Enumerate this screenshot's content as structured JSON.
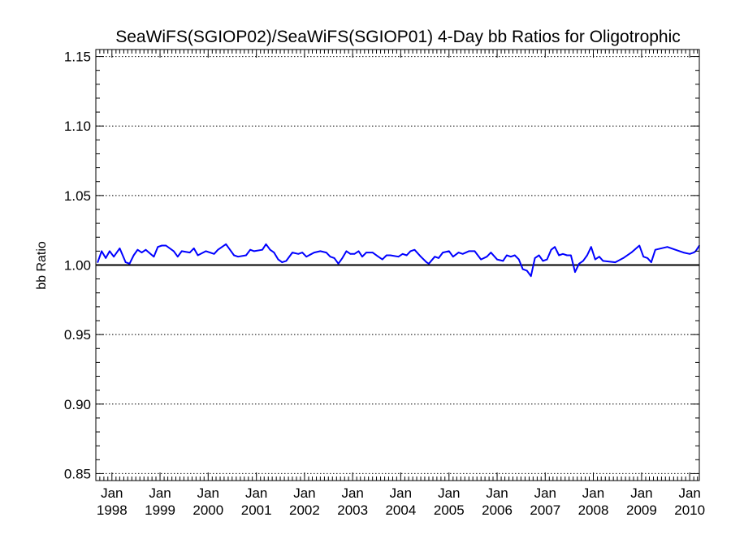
{
  "chart_data": {
    "type": "line",
    "title": "SeaWiFS(SGIOP02)/SeaWiFS(SGIOP01) 4-Day bb Ratios for Oligotrophic",
    "xlabel": "",
    "ylabel": "bb Ratio",
    "xlim": [
      "1997-09-01",
      "2010-03-15"
    ],
    "ylim": [
      0.845,
      1.155
    ],
    "yticks": [
      0.85,
      0.9,
      0.95,
      1.0,
      1.05,
      1.1,
      1.15
    ],
    "ytick_labels": [
      "0.85",
      "0.90",
      "0.95",
      "1.00",
      "1.05",
      "1.10",
      "1.15"
    ],
    "xticks": [
      {
        "date": "1998-01-01",
        "month": "Jan",
        "year": "1998"
      },
      {
        "date": "1999-01-01",
        "month": "Jan",
        "year": "1999"
      },
      {
        "date": "2000-01-01",
        "month": "Jan",
        "year": "2000"
      },
      {
        "date": "2001-01-01",
        "month": "Jan",
        "year": "2001"
      },
      {
        "date": "2002-01-01",
        "month": "Jan",
        "year": "2002"
      },
      {
        "date": "2003-01-01",
        "month": "Jan",
        "year": "2003"
      },
      {
        "date": "2004-01-01",
        "month": "Jan",
        "year": "2004"
      },
      {
        "date": "2005-01-01",
        "month": "Jan",
        "year": "2005"
      },
      {
        "date": "2006-01-01",
        "month": "Jan",
        "year": "2006"
      },
      {
        "date": "2007-01-01",
        "month": "Jan",
        "year": "2007"
      },
      {
        "date": "2008-01-01",
        "month": "Jan",
        "year": "2008"
      },
      {
        "date": "2009-01-01",
        "month": "Jan",
        "year": "2009"
      },
      {
        "date": "2010-01-01",
        "month": "Jan",
        "year": "2010"
      }
    ],
    "grid": "dotted horizontal at major y ticks",
    "reference_line": {
      "y": 1.0,
      "color": "#000000"
    },
    "series": [
      {
        "color": "#0000ff",
        "points": [
          [
            "1997-09-15",
            1.002
          ],
          [
            "1997-10-15",
            1.01
          ],
          [
            "1997-11-15",
            1.005
          ],
          [
            "1997-12-15",
            1.01
          ],
          [
            "1998-01-15",
            1.006
          ],
          [
            "1998-03-01",
            1.012
          ],
          [
            "1998-04-15",
            1.002
          ],
          [
            "1998-05-15",
            1.001
          ],
          [
            "1998-06-15",
            1.007
          ],
          [
            "1998-07-15",
            1.011
          ],
          [
            "1998-08-15",
            1.009
          ],
          [
            "1998-09-15",
            1.011
          ],
          [
            "1998-11-15",
            1.006
          ],
          [
            "1998-12-15",
            1.013
          ],
          [
            "1999-01-15",
            1.014
          ],
          [
            "1999-02-15",
            1.014
          ],
          [
            "1999-04-15",
            1.01
          ],
          [
            "1999-05-15",
            1.006
          ],
          [
            "1999-06-15",
            1.01
          ],
          [
            "1999-08-15",
            1.009
          ],
          [
            "1999-09-15",
            1.012
          ],
          [
            "1999-10-15",
            1.007
          ],
          [
            "1999-12-15",
            1.01
          ],
          [
            "2000-02-15",
            1.008
          ],
          [
            "2000-03-15",
            1.011
          ],
          [
            "2000-05-15",
            1.015
          ],
          [
            "2000-06-15",
            1.011
          ],
          [
            "2000-07-15",
            1.007
          ],
          [
            "2000-08-15",
            1.006
          ],
          [
            "2000-10-15",
            1.007
          ],
          [
            "2000-11-15",
            1.011
          ],
          [
            "2000-12-15",
            1.01
          ],
          [
            "2001-02-15",
            1.011
          ],
          [
            "2001-03-15",
            1.015
          ],
          [
            "2001-04-15",
            1.011
          ],
          [
            "2001-05-15",
            1.009
          ],
          [
            "2001-06-15",
            1.004
          ],
          [
            "2001-07-15",
            1.002
          ],
          [
            "2001-08-15",
            1.003
          ],
          [
            "2001-10-01",
            1.009
          ],
          [
            "2001-11-15",
            1.008
          ],
          [
            "2001-12-15",
            1.009
          ],
          [
            "2002-01-15",
            1.006
          ],
          [
            "2002-03-15",
            1.009
          ],
          [
            "2002-05-01",
            1.01
          ],
          [
            "2002-06-15",
            1.009
          ],
          [
            "2002-07-15",
            1.006
          ],
          [
            "2002-08-15",
            1.005
          ],
          [
            "2002-09-15",
            1.001
          ],
          [
            "2002-10-15",
            1.005
          ],
          [
            "2002-11-15",
            1.01
          ],
          [
            "2002-12-15",
            1.008
          ],
          [
            "2003-01-15",
            1.008
          ],
          [
            "2003-02-15",
            1.01
          ],
          [
            "2003-03-15",
            1.006
          ],
          [
            "2003-04-15",
            1.009
          ],
          [
            "2003-06-01",
            1.009
          ],
          [
            "2003-07-15",
            1.006
          ],
          [
            "2003-08-15",
            1.004
          ],
          [
            "2003-09-15",
            1.007
          ],
          [
            "2003-10-15",
            1.007
          ],
          [
            "2003-12-15",
            1.006
          ],
          [
            "2004-01-15",
            1.008
          ],
          [
            "2004-02-15",
            1.007
          ],
          [
            "2004-03-15",
            1.01
          ],
          [
            "2004-04-15",
            1.011
          ],
          [
            "2004-06-01",
            1.006
          ],
          [
            "2004-07-15",
            1.002
          ],
          [
            "2004-08-01",
            1.001
          ],
          [
            "2004-09-15",
            1.006
          ],
          [
            "2004-10-15",
            1.005
          ],
          [
            "2004-11-15",
            1.009
          ],
          [
            "2005-01-01",
            1.01
          ],
          [
            "2005-02-01",
            1.006
          ],
          [
            "2005-03-15",
            1.009
          ],
          [
            "2005-04-15",
            1.008
          ],
          [
            "2005-06-01",
            1.01
          ],
          [
            "2005-07-15",
            1.01
          ],
          [
            "2005-09-01",
            1.004
          ],
          [
            "2005-10-15",
            1.006
          ],
          [
            "2005-11-15",
            1.009
          ],
          [
            "2006-01-01",
            1.004
          ],
          [
            "2006-02-15",
            1.003
          ],
          [
            "2006-03-15",
            1.007
          ],
          [
            "2006-04-15",
            1.006
          ],
          [
            "2006-05-15",
            1.007
          ],
          [
            "2006-06-15",
            1.004
          ],
          [
            "2006-07-15",
            0.997
          ],
          [
            "2006-08-15",
            0.996
          ],
          [
            "2006-09-15",
            0.992
          ],
          [
            "2006-10-15",
            1.005
          ],
          [
            "2006-11-15",
            1.007
          ],
          [
            "2006-12-15",
            1.003
          ],
          [
            "2007-01-15",
            1.004
          ],
          [
            "2007-02-15",
            1.011
          ],
          [
            "2007-03-15",
            1.013
          ],
          [
            "2007-04-15",
            1.007
          ],
          [
            "2007-05-15",
            1.008
          ],
          [
            "2007-06-15",
            1.007
          ],
          [
            "2007-07-15",
            1.007
          ],
          [
            "2007-08-15",
            0.995
          ],
          [
            "2007-09-15",
            1.001
          ],
          [
            "2007-10-15",
            1.003
          ],
          [
            "2007-11-15",
            1.007
          ],
          [
            "2007-12-15",
            1.013
          ],
          [
            "2008-01-15",
            1.004
          ],
          [
            "2008-02-15",
            1.006
          ],
          [
            "2008-03-15",
            1.003
          ],
          [
            "2008-06-15",
            1.002
          ],
          [
            "2008-08-15",
            1.005
          ],
          [
            "2008-10-15",
            1.009
          ],
          [
            "2008-12-15",
            1.014
          ],
          [
            "2009-01-15",
            1.006
          ],
          [
            "2009-02-15",
            1.005
          ],
          [
            "2009-03-15",
            1.002
          ],
          [
            "2009-04-15",
            1.011
          ],
          [
            "2009-07-15",
            1.013
          ],
          [
            "2009-09-15",
            1.011
          ],
          [
            "2009-11-15",
            1.009
          ],
          [
            "2010-01-01",
            1.008
          ],
          [
            "2010-02-01",
            1.009
          ],
          [
            "2010-02-15",
            1.01
          ],
          [
            "2010-03-15",
            1.014
          ]
        ]
      }
    ]
  }
}
